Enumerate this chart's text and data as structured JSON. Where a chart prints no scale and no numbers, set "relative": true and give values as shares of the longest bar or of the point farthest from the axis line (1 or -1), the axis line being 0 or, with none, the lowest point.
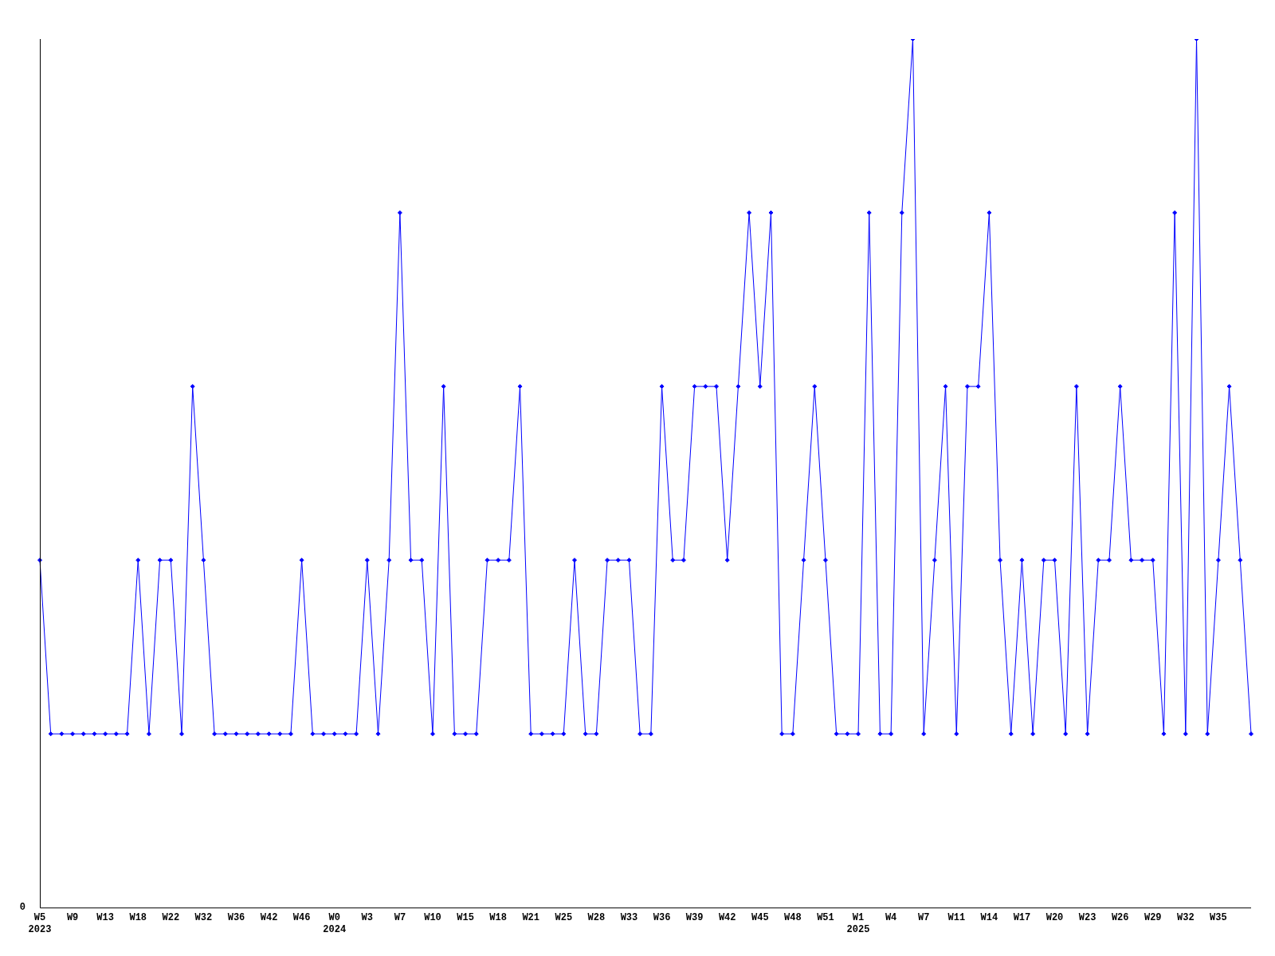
{
  "chart_data": {
    "type": "line",
    "relative": true,
    "color": "#0000ff",
    "marker": "diamond",
    "line_style": "solid",
    "grid": false,
    "legend": false,
    "categories": [
      "W5\n2023",
      null,
      null,
      "W9",
      null,
      null,
      "W13",
      null,
      null,
      "W18",
      null,
      null,
      "W22",
      null,
      null,
      "W32",
      null,
      null,
      "W36",
      null,
      null,
      "W42",
      null,
      null,
      "W46",
      null,
      null,
      "W0\n2024",
      null,
      null,
      "W3",
      null,
      null,
      "W7",
      null,
      null,
      "W10",
      null,
      null,
      "W15",
      null,
      null,
      "W18",
      null,
      null,
      "W21",
      null,
      null,
      "W25",
      null,
      null,
      "W28",
      null,
      null,
      "W33",
      null,
      null,
      "W36",
      null,
      null,
      "W39",
      null,
      null,
      "W42",
      null,
      null,
      "W45",
      null,
      null,
      "W48",
      null,
      null,
      "W51",
      null,
      null,
      "W1\n2025",
      null,
      null,
      "W4",
      null,
      null,
      "W7",
      null,
      null,
      "W11",
      null,
      null,
      "W14",
      null,
      null,
      "W17",
      null,
      null,
      "W20",
      null,
      null,
      "W23",
      null,
      null,
      "W26",
      null,
      null,
      "W29",
      null,
      null,
      "W32",
      null,
      null,
      "W35",
      null,
      null,
      null
    ],
    "values": [
      0.4,
      0.2,
      0.2,
      0.2,
      0.2,
      0.2,
      0.2,
      0.2,
      0.2,
      0.4,
      0.2,
      0.4,
      0.4,
      0.2,
      0.6,
      0.4,
      0.2,
      0.2,
      0.2,
      0.2,
      0.2,
      0.2,
      0.2,
      0.2,
      0.4,
      0.2,
      0.2,
      0.2,
      0.2,
      0.2,
      0.4,
      0.2,
      0.4,
      0.8,
      0.4,
      0.4,
      0.2,
      0.6,
      0.2,
      0.2,
      0.2,
      0.4,
      0.4,
      0.4,
      0.6,
      0.2,
      0.2,
      0.2,
      0.2,
      0.4,
      0.2,
      0.2,
      0.4,
      0.4,
      0.4,
      0.2,
      0.2,
      0.6,
      0.4,
      0.4,
      0.6,
      0.6,
      0.6,
      0.4,
      0.6,
      0.8,
      0.6,
      0.8,
      0.2,
      0.2,
      0.4,
      0.6,
      0.4,
      0.2,
      0.2,
      0.2,
      0.8,
      0.2,
      0.2,
      0.8,
      1,
      0.2,
      0.4,
      0.6,
      0.2,
      0.6,
      0.6,
      0.8,
      0.4,
      0.2,
      0.4,
      0.2,
      0.4,
      0.4,
      0.2,
      0.6,
      0.2,
      0.4,
      0.4,
      0.6,
      0.4,
      0.4,
      0.4,
      0.2,
      0.8,
      0.2,
      1,
      0.2,
      0.4,
      0.6,
      0.4,
      0.2
    ],
    "annotations": [
      "0"
    ]
  }
}
